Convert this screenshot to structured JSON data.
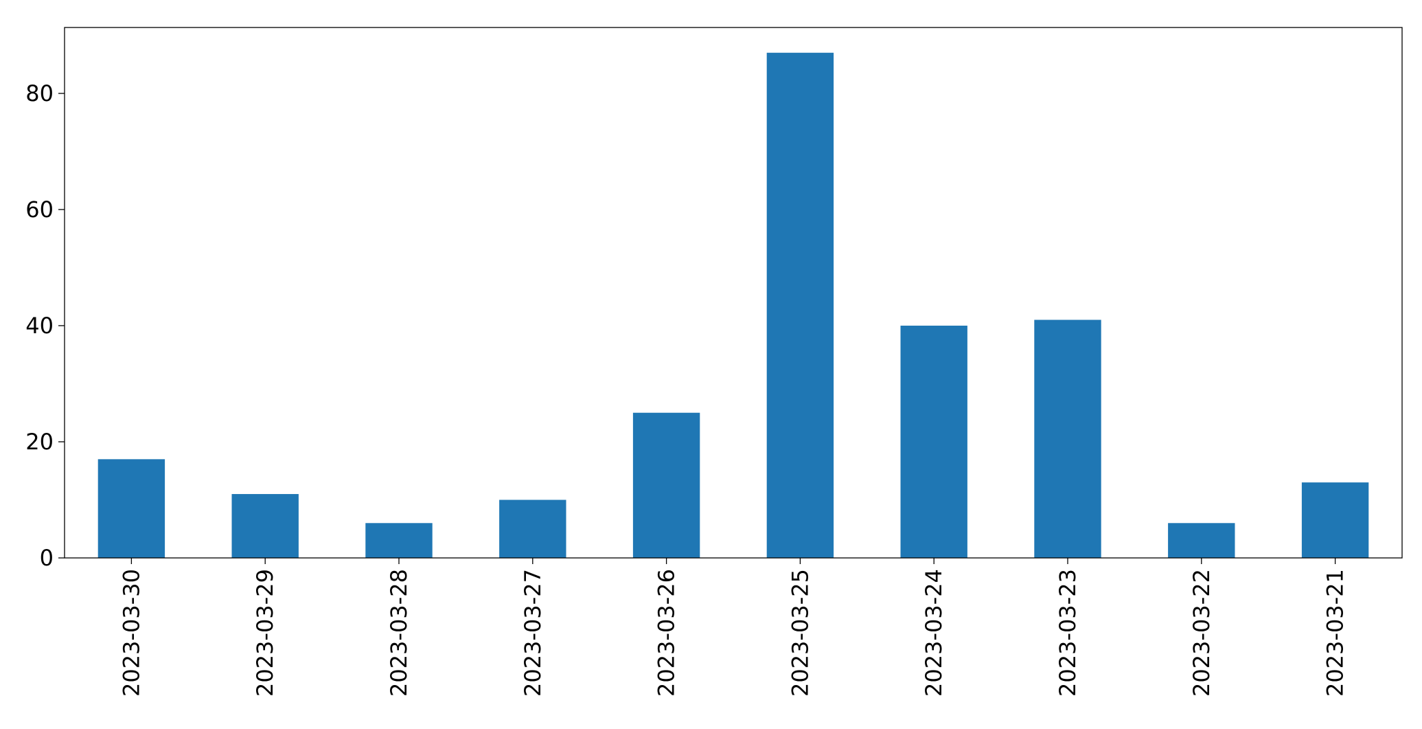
{
  "chart_data": {
    "type": "bar",
    "categories": [
      "2023-03-30",
      "2023-03-29",
      "2023-03-28",
      "2023-03-27",
      "2023-03-26",
      "2023-03-25",
      "2023-03-24",
      "2023-03-23",
      "2023-03-22",
      "2023-03-21"
    ],
    "values": [
      17,
      11,
      6,
      10,
      25,
      87,
      40,
      41,
      6,
      13
    ],
    "color": "#1f77b4",
    "ylim": [
      0,
      91.35
    ],
    "yticks": [
      0,
      20,
      40,
      60,
      80
    ],
    "grid": false
  }
}
